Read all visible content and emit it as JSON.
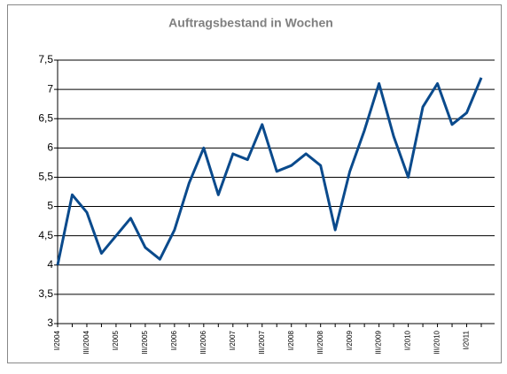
{
  "chart_data": {
    "type": "line",
    "title": "Auftragsbestand in Wochen",
    "categories": [
      "I/2004",
      null,
      "III/2004",
      null,
      "I/2005",
      null,
      "III/2005",
      null,
      "I/2006",
      null,
      "III/2006",
      null,
      "I/2007",
      null,
      "III/2007",
      null,
      "I/2008",
      null,
      "III/2008",
      null,
      "I/2009",
      null,
      "III/2009",
      null,
      "I/2010",
      null,
      "III/2010",
      null,
      "I/2011",
      null
    ],
    "series": [
      {
        "name": "Auftragsbestand",
        "color": "#0a4a8c",
        "values": [
          4.0,
          5.2,
          4.9,
          4.2,
          4.5,
          4.8,
          4.3,
          4.1,
          4.6,
          5.4,
          6.0,
          5.2,
          5.9,
          5.8,
          6.4,
          5.6,
          5.7,
          5.9,
          5.7,
          4.6,
          5.6,
          6.3,
          7.1,
          6.2,
          5.5,
          6.7,
          7.1,
          6.4,
          6.6,
          7.2
        ]
      }
    ],
    "ylim": [
      3,
      7.5
    ],
    "yticks": [
      3,
      {
        "value": 3.5,
        "label": "3,5"
      },
      4,
      {
        "value": 4.5,
        "label": "4,5"
      },
      5,
      {
        "value": 5.5,
        "label": "5,5"
      },
      6,
      {
        "value": 6.5,
        "label": "6,5"
      },
      7,
      {
        "value": 7.5,
        "label": "7,5"
      }
    ],
    "grid": true
  }
}
